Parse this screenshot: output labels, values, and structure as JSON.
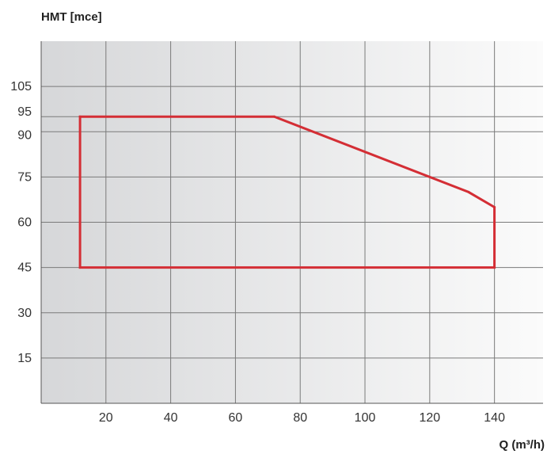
{
  "chart_data": {
    "type": "area",
    "ylabel": "HMT [mce]",
    "xlabel": "Q (m³/h)",
    "xlim": [
      0,
      155
    ],
    "ylim": [
      0,
      120
    ],
    "x_ticks": [
      20,
      40,
      60,
      80,
      100,
      120,
      140
    ],
    "y_ticks": [
      15,
      30,
      45,
      60,
      75,
      90,
      95,
      105
    ],
    "grid": true,
    "line_color": "#d42e35",
    "series": [
      {
        "points": [
          {
            "x": 12,
            "y": 45
          },
          {
            "x": 12,
            "y": 95
          },
          {
            "x": 72,
            "y": 95
          },
          {
            "x": 132,
            "y": 70
          },
          {
            "x": 140,
            "y": 65
          },
          {
            "x": 140,
            "y": 45
          }
        ]
      }
    ]
  }
}
